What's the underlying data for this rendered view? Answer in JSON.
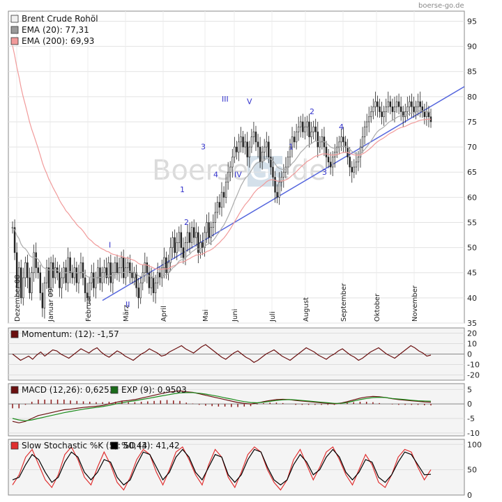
{
  "source": "boerse-go.de",
  "watermark": {
    "left": "Boerse",
    "box": "Go",
    "right": ".de"
  },
  "chart_data": [
    {
      "type": "candlestick",
      "title": "Brent Crude Rohöl",
      "legend": [
        {
          "label": "Brent Crude Rohöl",
          "color": "#f0f0f0"
        },
        {
          "label": "EMA (20): 77,31",
          "color": "#999999"
        },
        {
          "label": "EMA (200): 69,93",
          "color": "#f19a9a"
        }
      ],
      "ylim": [
        35,
        97
      ],
      "yticks": [
        35,
        40,
        45,
        50,
        55,
        60,
        65,
        70,
        75,
        80,
        85,
        90,
        95
      ],
      "xticks": [
        "Dezember 08",
        "Januar 09",
        "Februar",
        "März",
        "April",
        "Mai",
        "Juni",
        "Juli",
        "August",
        "September",
        "Oktober",
        "November"
      ],
      "close": [
        54,
        49,
        42,
        46,
        40,
        44,
        47,
        44,
        41,
        45,
        49,
        46,
        45,
        41,
        38,
        43,
        46,
        42,
        47,
        44,
        46,
        45,
        42,
        44,
        46,
        43,
        48,
        45,
        44,
        46,
        43,
        45,
        47,
        44,
        41,
        40,
        43,
        45,
        42,
        44,
        46,
        43,
        45,
        46,
        44,
        47,
        43,
        45,
        47,
        45,
        46,
        48,
        44,
        46,
        47,
        45,
        44,
        45,
        42,
        40,
        43,
        45,
        47,
        45,
        42,
        44,
        41,
        43,
        45,
        44,
        46,
        48,
        45,
        47,
        50,
        52,
        49,
        51,
        53,
        50,
        48,
        51,
        53,
        51,
        54,
        52,
        53,
        49,
        51,
        50,
        53,
        55,
        52,
        54,
        55,
        57,
        59,
        58,
        61,
        60,
        63,
        65,
        66,
        68,
        70,
        69,
        71,
        72,
        70,
        71,
        68,
        70,
        72,
        73,
        71,
        70,
        67,
        69,
        70,
        71,
        68,
        66,
        64,
        61,
        60,
        63,
        64,
        65,
        66,
        68,
        70,
        72,
        71,
        73,
        74,
        75,
        73,
        74,
        75,
        72,
        73,
        74,
        73,
        70,
        71,
        72,
        70,
        68,
        67,
        66,
        68,
        69,
        70,
        71,
        72,
        71,
        70,
        68,
        66,
        65,
        66,
        67,
        68,
        70,
        72,
        74,
        75,
        76,
        77,
        78,
        79,
        78,
        77,
        76,
        77,
        78,
        79,
        78,
        77,
        78,
        79,
        78,
        77,
        76,
        77,
        78,
        79,
        78,
        77,
        78,
        79,
        78,
        77,
        76,
        77,
        76,
        75
      ],
      "ema20_last": 77.31,
      "ema200_last": 69.93,
      "trendline": {
        "from": {
          "label": "Februar",
          "value": 39.5
        },
        "to": {
          "label": "Ende",
          "value": 82
        }
      },
      "wave_labels": [
        "I",
        "II",
        "1",
        "2",
        "3",
        "4",
        "III",
        "IV",
        "V",
        "1",
        "2",
        "3",
        "4"
      ]
    },
    {
      "type": "line",
      "title": "Momentum",
      "legend": [
        {
          "label": "Momentum: (12): -1,57",
          "color": "#6b1010"
        }
      ],
      "ylim": [
        -25,
        25
      ],
      "yticks": [
        -20,
        -10,
        0,
        10,
        20
      ],
      "series": [
        {
          "name": "Momentum (12)",
          "values": [
            0,
            -3,
            -6,
            -4,
            -2,
            -5,
            -1,
            2,
            -2,
            1,
            4,
            3,
            0,
            -2,
            -4,
            -1,
            2,
            5,
            3,
            1,
            4,
            6,
            2,
            -1,
            -3,
            0,
            3,
            1,
            -2,
            -4,
            -6,
            -3,
            0,
            2,
            5,
            3,
            1,
            -2,
            -1,
            2,
            4,
            6,
            8,
            5,
            3,
            1,
            4,
            7,
            9,
            6,
            3,
            0,
            -3,
            -5,
            -2,
            1,
            3,
            0,
            -3,
            -5,
            -8,
            -6,
            -3,
            0,
            2,
            4,
            1,
            -2,
            -4,
            -6,
            -3,
            0,
            3,
            6,
            4,
            2,
            -1,
            -3,
            -5,
            -2,
            0,
            3,
            5,
            2,
            -1,
            -3,
            -6,
            -4,
            -1,
            2,
            4,
            6,
            3,
            0,
            -2,
            -4,
            -1,
            2,
            5,
            8,
            6,
            3,
            1,
            -2,
            -1
          ]
        }
      ]
    },
    {
      "type": "line",
      "title": "MACD",
      "legend": [
        {
          "label": "MACD (12,26): 0,6253",
          "color": "#6b1010"
        },
        {
          "label": "EXP (9): 0,9503",
          "color": "#1a6b1a"
        }
      ],
      "ylim": [
        -11,
        7
      ],
      "yticks": [
        -10,
        -5,
        0,
        5
      ],
      "series": [
        {
          "name": "MACD (12,26)",
          "values": [
            -6,
            -6.5,
            -6,
            -5,
            -4,
            -3.5,
            -3,
            -2.5,
            -2,
            -1.8,
            -1.5,
            -1.2,
            -1,
            -0.8,
            -0.5,
            0,
            0.5,
            1,
            1.2,
            1.5,
            2,
            2.5,
            3,
            3.5,
            4,
            4.3,
            4.5,
            4.2,
            4,
            3.5,
            3,
            2.5,
            2,
            1.5,
            1,
            0.5,
            0.2,
            0,
            0.3,
            0.8,
            1.2,
            1.5,
            1.6,
            1.5,
            1.2,
            1,
            0.8,
            0.6,
            0.4,
            0.2,
            0,
            0.3,
            0.8,
            1.4,
            2,
            2.4,
            2.6,
            2.5,
            2.2,
            1.8,
            1.5,
            1.3,
            1.1,
            0.9,
            0.7,
            0.62
          ]
        },
        {
          "name": "EXP (9)",
          "values": [
            -5,
            -5.5,
            -5.8,
            -5.5,
            -5,
            -4.5,
            -4,
            -3.5,
            -3,
            -2.6,
            -2.2,
            -1.8,
            -1.5,
            -1.2,
            -0.9,
            -0.5,
            0,
            0.4,
            0.8,
            1.1,
            1.5,
            1.9,
            2.3,
            2.7,
            3.1,
            3.5,
            3.8,
            3.9,
            3.9,
            3.7,
            3.4,
            3,
            2.6,
            2.1,
            1.7,
            1.2,
            0.8,
            0.5,
            0.4,
            0.6,
            0.9,
            1.2,
            1.4,
            1.5,
            1.4,
            1.2,
            1,
            0.8,
            0.6,
            0.4,
            0.2,
            0.2,
            0.5,
            1,
            1.5,
            1.9,
            2.2,
            2.3,
            2.2,
            1.9,
            1.7,
            1.5,
            1.3,
            1.1,
            1,
            0.95
          ]
        }
      ]
    },
    {
      "type": "line",
      "title": "Slow Stochastic",
      "legend": [
        {
          "label": "Slow Stochastic %K (5): 50,44",
          "color": "#e03030"
        },
        {
          "label": "%D (3): 41,42",
          "color": "#000000"
        }
      ],
      "ylim": [
        0,
        110
      ],
      "yticks": [
        0,
        50,
        100
      ],
      "series": [
        {
          "name": "%K (5)",
          "values": [
            20,
            40,
            75,
            90,
            60,
            30,
            15,
            40,
            80,
            95,
            70,
            35,
            20,
            55,
            85,
            60,
            25,
            10,
            35,
            70,
            90,
            80,
            45,
            20,
            50,
            85,
            95,
            70,
            40,
            20,
            60,
            90,
            75,
            35,
            15,
            45,
            80,
            95,
            85,
            50,
            25,
            10,
            30,
            70,
            90,
            60,
            30,
            55,
            85,
            95,
            70,
            40,
            20,
            50,
            80,
            60,
            25,
            15,
            40,
            75,
            90,
            85,
            55,
            30,
            50
          ]
        },
        {
          "name": "%D (3)",
          "values": [
            30,
            35,
            60,
            80,
            70,
            45,
            25,
            35,
            65,
            85,
            75,
            45,
            30,
            45,
            70,
            65,
            35,
            20,
            30,
            60,
            85,
            80,
            55,
            30,
            45,
            75,
            90,
            75,
            45,
            30,
            55,
            80,
            75,
            40,
            25,
            40,
            70,
            90,
            85,
            55,
            30,
            20,
            30,
            60,
            80,
            65,
            40,
            50,
            75,
            90,
            75,
            45,
            30,
            45,
            70,
            65,
            35,
            25,
            40,
            65,
            85,
            80,
            60,
            40,
            41
          ]
        }
      ]
    }
  ]
}
